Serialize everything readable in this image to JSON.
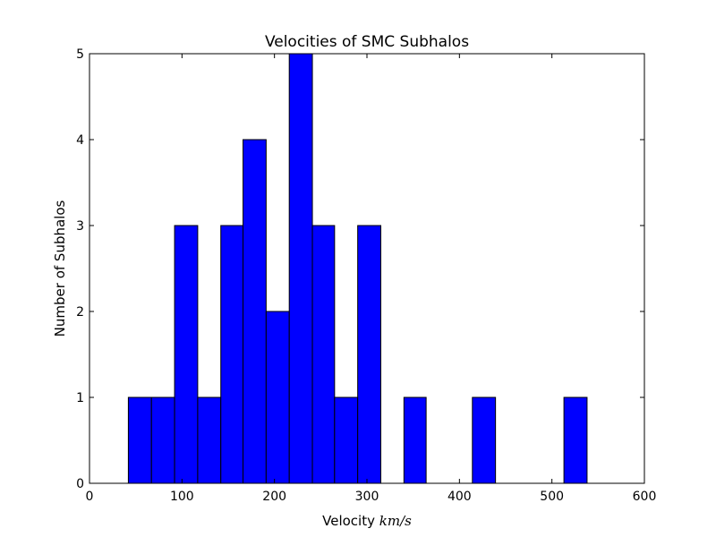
{
  "chart_data": {
    "type": "bar",
    "title": "Velocities of SMC Subhalos",
    "xlabel": "Velocity",
    "xlabel_unit": "km/s",
    "ylabel": "Number of Subhalos",
    "xlim": [
      0,
      600
    ],
    "ylim": [
      0,
      5
    ],
    "xticks": [
      "0",
      "100",
      "200",
      "300",
      "400",
      "500",
      "600"
    ],
    "yticks": [
      "0",
      "1",
      "2",
      "3",
      "4",
      "5"
    ],
    "grid": false,
    "bar_color": "#0000ff",
    "edge_color": "#000000",
    "bins": [
      {
        "start": 42,
        "end": 67,
        "count": 1
      },
      {
        "start": 67,
        "end": 92,
        "count": 1
      },
      {
        "start": 92,
        "end": 117,
        "count": 3
      },
      {
        "start": 117,
        "end": 142,
        "count": 1
      },
      {
        "start": 142,
        "end": 166,
        "count": 3
      },
      {
        "start": 166,
        "end": 191,
        "count": 4
      },
      {
        "start": 191,
        "end": 216,
        "count": 2
      },
      {
        "start": 216,
        "end": 241,
        "count": 5
      },
      {
        "start": 241,
        "end": 265,
        "count": 3
      },
      {
        "start": 265,
        "end": 290,
        "count": 1
      },
      {
        "start": 290,
        "end": 315,
        "count": 3
      },
      {
        "start": 340,
        "end": 364,
        "count": 1
      },
      {
        "start": 414,
        "end": 439,
        "count": 1
      },
      {
        "start": 513,
        "end": 538,
        "count": 1
      }
    ]
  }
}
